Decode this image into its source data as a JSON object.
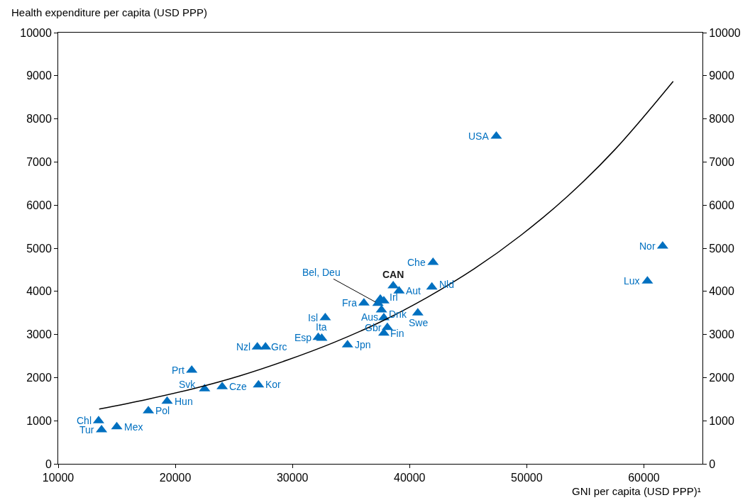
{
  "chart_data": {
    "type": "scatter",
    "xlabel": "GNI per capita (USD PPP)¹",
    "ylabel": "Health expenditure per capita (USD PPP)",
    "xlim": [
      10000,
      65000
    ],
    "xticks": [
      10000,
      20000,
      30000,
      40000,
      50000,
      60000
    ],
    "ylim": [
      0,
      10000
    ],
    "yticks": [
      0,
      1000,
      2000,
      3000,
      4000,
      5000,
      6000,
      7000,
      8000,
      9000,
      10000
    ],
    "y2lim": [
      0,
      10000
    ],
    "y2ticks": [
      0,
      1000,
      2000,
      3000,
      4000,
      5000,
      6000,
      7000,
      8000,
      9000,
      10000
    ],
    "marker": "triangle",
    "series": [
      {
        "color": "#0070c0",
        "x": [
          13450,
          13700,
          15000,
          17700,
          19300,
          21400,
          22500,
          24000,
          27100,
          27000,
          27700,
          32200,
          32500,
          32800,
          34700,
          36100,
          37800,
          37600,
          37800,
          38100,
          37800,
          38600,
          39100,
          41900,
          42000,
          40700,
          47400,
          61600,
          60300,
          37500,
          37300
        ],
        "values": [
          1000,
          790,
          860,
          1230,
          1450,
          2170,
          1740,
          1790,
          1830,
          2710,
          2710,
          2930,
          2910,
          3390,
          2760,
          3730,
          3780,
          3570,
          3390,
          3160,
          3030,
          4130,
          4010,
          4100,
          4670,
          3500,
          7600,
          5050,
          4240,
          3820,
          3720
        ]
      },
      {
        "type": "line",
        "color": "#000000",
        "marker": "none",
        "line_style": "solid",
        "x": [
          13500,
          17500,
          21500,
          25500,
          29500,
          33500,
          37500,
          41500,
          45500,
          49500,
          53500,
          57500,
          62500
        ],
        "values": [
          1270,
          1490,
          1740,
          2040,
          2400,
          2810,
          3290,
          3860,
          4520,
          5300,
          6210,
          7280,
          8870
        ]
      }
    ],
    "annotations": [
      {
        "text": "Chl",
        "x": 13450,
        "y": 1000
      },
      {
        "text": "Tur",
        "x": 13700,
        "y": 790
      },
      {
        "text": "Mex",
        "x": 15000,
        "y": 860
      },
      {
        "text": "Pol",
        "x": 17700,
        "y": 1230
      },
      {
        "text": "Hun",
        "x": 19300,
        "y": 1450
      },
      {
        "text": "Prt",
        "x": 21400,
        "y": 2170
      },
      {
        "text": "Svk",
        "x": 22500,
        "y": 1740
      },
      {
        "text": "Cze",
        "x": 24000,
        "y": 1790
      },
      {
        "text": "Kor",
        "x": 27100,
        "y": 1830
      },
      {
        "text": "Nzl",
        "x": 27000,
        "y": 2710
      },
      {
        "text": "Grc",
        "x": 27700,
        "y": 2710
      },
      {
        "text": "Esp",
        "x": 32200,
        "y": 2930
      },
      {
        "text": "Ita",
        "x": 32500,
        "y": 2910
      },
      {
        "text": "Isl",
        "x": 32800,
        "y": 3390
      },
      {
        "text": "Jpn",
        "x": 34700,
        "y": 2760
      },
      {
        "text": "Fra",
        "x": 36100,
        "y": 3730
      },
      {
        "text": "Irl",
        "x": 37800,
        "y": 3780
      },
      {
        "text": "Dnk",
        "x": 37600,
        "y": 3570
      },
      {
        "text": "Aus",
        "x": 37800,
        "y": 3390
      },
      {
        "text": "Gbr",
        "x": 38100,
        "y": 3160
      },
      {
        "text": "Fin",
        "x": 37800,
        "y": 3030
      },
      {
        "text": "CAN",
        "x": 38600,
        "y": 4130
      },
      {
        "text": "Aut",
        "x": 39100,
        "y": 4010
      },
      {
        "text": "Nld",
        "x": 41900,
        "y": 4100
      },
      {
        "text": "Che",
        "x": 42000,
        "y": 4670
      },
      {
        "text": "Swe",
        "x": 40700,
        "y": 3500
      },
      {
        "text": "USA",
        "x": 47400,
        "y": 7600
      },
      {
        "text": "Nor",
        "x": 61600,
        "y": 5050
      },
      {
        "text": "Lux",
        "x": 60300,
        "y": 4240
      },
      {
        "text": "Bel, Deu",
        "x": 37300,
        "y": 3720
      }
    ]
  }
}
